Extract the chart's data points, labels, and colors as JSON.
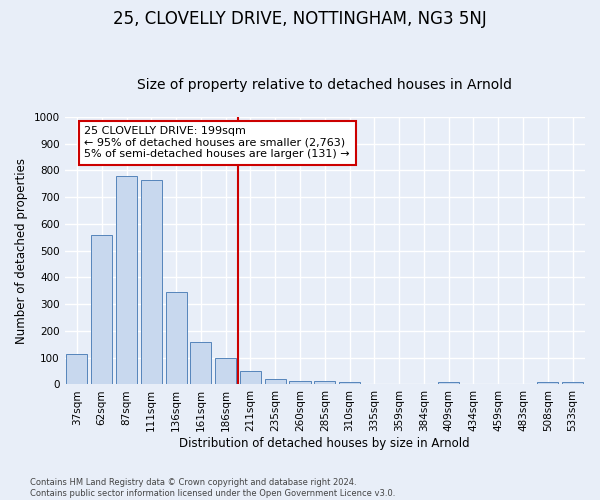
{
  "title_line1": "25, CLOVELLY DRIVE, NOTTINGHAM, NG3 5NJ",
  "title_line2": "Size of property relative to detached houses in Arnold",
  "xlabel": "Distribution of detached houses by size in Arnold",
  "ylabel": "Number of detached properties",
  "bar_labels": [
    "37sqm",
    "62sqm",
    "87sqm",
    "111sqm",
    "136sqm",
    "161sqm",
    "186sqm",
    "211sqm",
    "235sqm",
    "260sqm",
    "285sqm",
    "310sqm",
    "335sqm",
    "359sqm",
    "384sqm",
    "409sqm",
    "434sqm",
    "459sqm",
    "483sqm",
    "508sqm",
    "533sqm"
  ],
  "bar_values": [
    115,
    557,
    778,
    762,
    345,
    160,
    97,
    50,
    20,
    13,
    13,
    8,
    0,
    0,
    0,
    10,
    0,
    0,
    0,
    8,
    8
  ],
  "bar_color": "#c8d8ee",
  "bar_edge_color": "#5585bb",
  "vline_color": "#cc0000",
  "annotation_text": "25 CLOVELLY DRIVE: 199sqm\n← 95% of detached houses are smaller (2,763)\n5% of semi-detached houses are larger (131) →",
  "annotation_box_color": "#ffffff",
  "annotation_box_edge_color": "#cc0000",
  "ylim": [
    0,
    1000
  ],
  "yticks": [
    0,
    100,
    200,
    300,
    400,
    500,
    600,
    700,
    800,
    900,
    1000
  ],
  "background_color": "#e8eef8",
  "grid_color": "#ffffff",
  "footer_text": "Contains HM Land Registry data © Crown copyright and database right 2024.\nContains public sector information licensed under the Open Government Licence v3.0.",
  "title_fontsize": 12,
  "subtitle_fontsize": 10,
  "tick_fontsize": 7.5,
  "annotation_fontsize": 8,
  "ylabel_fontsize": 8.5,
  "xlabel_fontsize": 8.5
}
